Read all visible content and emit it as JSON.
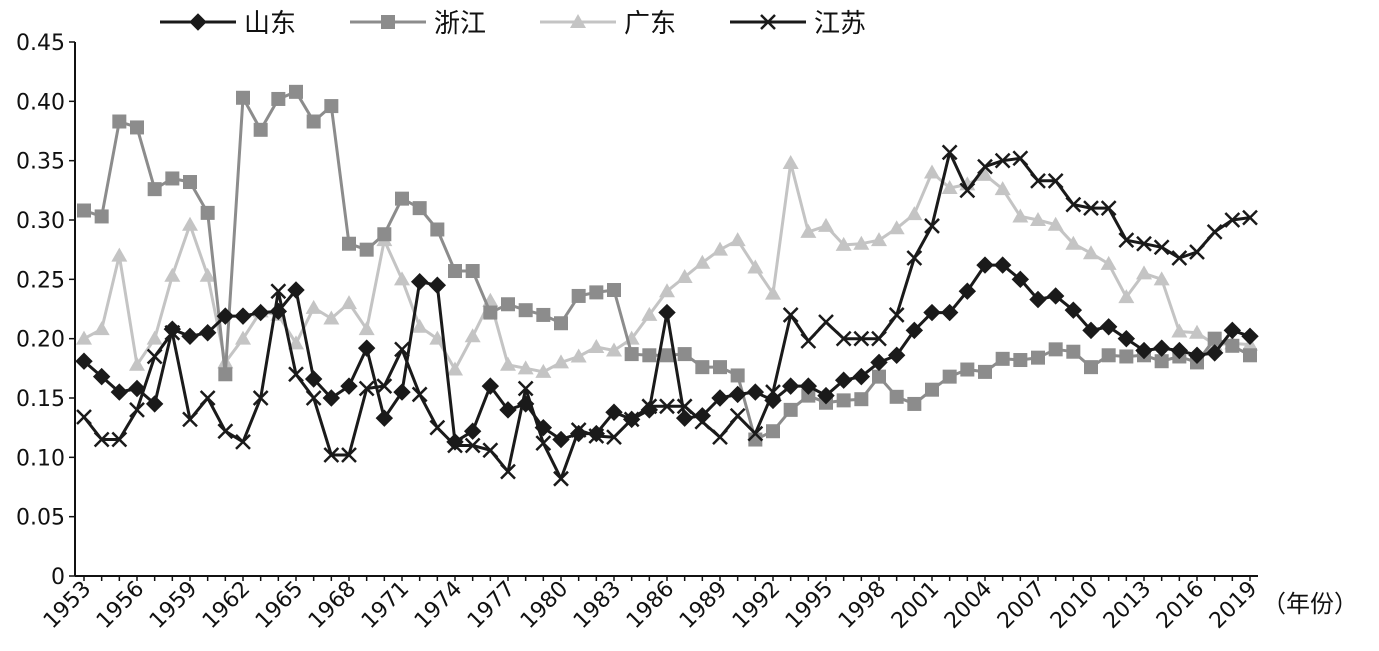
{
  "chart_data": {
    "type": "line",
    "x_unit_label": "（年份）",
    "x_tick_labels": [
      "1953",
      "1956",
      "1959",
      "1962",
      "1965",
      "1968",
      "1971",
      "1974",
      "1977",
      "1980",
      "1983",
      "1986",
      "1989",
      "1992",
      "1995",
      "1998",
      "2001",
      "2004",
      "2007",
      "2010",
      "2013",
      "2016",
      "2019"
    ],
    "y_tick_labels": [
      "0",
      "0.05",
      "0.10",
      "0.15",
      "0.20",
      "0.25",
      "0.30",
      "0.35",
      "0.40",
      "0.45"
    ],
    "ylim": [
      0,
      0.45
    ],
    "xlim": [
      1953,
      2019
    ],
    "grid": false,
    "legend_position": "top",
    "series": [
      {
        "name": "山东",
        "marker": "diamond",
        "color": "#1a1a1a",
        "x": [
          1953,
          1954,
          1955,
          1956,
          1957,
          1958,
          1959,
          1960,
          1961,
          1962,
          1963,
          1964,
          1965,
          1966,
          1967,
          1968,
          1969,
          1970,
          1971,
          1972,
          1973,
          1974,
          1975,
          1976,
          1977,
          1978,
          1979,
          1980,
          1981,
          1982,
          1983,
          1984,
          1985,
          1986,
          1987,
          1988,
          1989,
          1990,
          1991,
          1992,
          1993,
          1994,
          1995,
          1996,
          1997,
          1998,
          1999,
          2000,
          2001,
          2002,
          2003,
          2004,
          2005,
          2006,
          2007,
          2008,
          2009,
          2010,
          2011,
          2012,
          2013,
          2014,
          2015,
          2016,
          2017,
          2018,
          2019
        ],
        "values": [
          0.181,
          0.168,
          0.155,
          0.158,
          0.145,
          0.208,
          0.202,
          0.205,
          0.219,
          0.219,
          0.222,
          0.223,
          0.241,
          0.166,
          0.15,
          0.16,
          0.192,
          0.133,
          0.155,
          0.248,
          0.245,
          0.113,
          0.122,
          0.16,
          0.14,
          0.145,
          0.125,
          0.115,
          0.12,
          0.12,
          0.138,
          0.132,
          0.14,
          0.222,
          0.133,
          0.135,
          0.15,
          0.153,
          0.155,
          0.148,
          0.16,
          0.16,
          0.152,
          0.165,
          0.168,
          0.18,
          0.186,
          0.207,
          0.222,
          0.222,
          0.24,
          0.262,
          0.262,
          0.25,
          0.233,
          0.236,
          0.224,
          0.207,
          0.21,
          0.2,
          0.19,
          0.192,
          0.19,
          0.186,
          0.188,
          0.207,
          0.202
        ]
      },
      {
        "name": "浙江",
        "marker": "square",
        "color": "#8c8c8c",
        "x": [
          1953,
          1954,
          1955,
          1956,
          1957,
          1958,
          1959,
          1960,
          1961,
          1962,
          1963,
          1964,
          1965,
          1966,
          1967,
          1968,
          1969,
          1970,
          1971,
          1972,
          1973,
          1974,
          1975,
          1976,
          1977,
          1978,
          1979,
          1980,
          1981,
          1982,
          1983,
          1984,
          1985,
          1986,
          1987,
          1988,
          1989,
          1990,
          1991,
          1992,
          1993,
          1994,
          1995,
          1996,
          1997,
          1998,
          1999,
          2000,
          2001,
          2002,
          2003,
          2004,
          2005,
          2006,
          2007,
          2008,
          2009,
          2010,
          2011,
          2012,
          2013,
          2014,
          2015,
          2016,
          2017,
          2018,
          2019
        ],
        "values": [
          0.308,
          0.303,
          0.383,
          0.378,
          0.326,
          0.335,
          0.332,
          0.306,
          0.17,
          0.403,
          0.376,
          0.402,
          0.408,
          0.383,
          0.396,
          0.28,
          0.275,
          0.288,
          0.318,
          0.31,
          0.292,
          0.257,
          0.257,
          0.222,
          0.229,
          0.224,
          0.22,
          0.213,
          0.236,
          0.239,
          0.241,
          0.187,
          0.186,
          0.186,
          0.187,
          0.176,
          0.176,
          0.169,
          0.115,
          0.122,
          0.14,
          0.152,
          0.146,
          0.148,
          0.149,
          0.168,
          0.151,
          0.145,
          0.157,
          0.168,
          0.174,
          0.172,
          0.183,
          0.182,
          0.184,
          0.191,
          0.189,
          0.176,
          0.186,
          0.185,
          0.186,
          0.181,
          0.185,
          0.18,
          0.2,
          0.194,
          0.186
        ]
      },
      {
        "name": "广东",
        "marker": "triangle",
        "color": "#c4c4c4",
        "x": [
          1953,
          1954,
          1955,
          1956,
          1957,
          1958,
          1959,
          1960,
          1961,
          1962,
          1963,
          1964,
          1965,
          1966,
          1967,
          1968,
          1969,
          1970,
          1971,
          1972,
          1973,
          1974,
          1975,
          1976,
          1977,
          1978,
          1979,
          1980,
          1981,
          1982,
          1983,
          1984,
          1985,
          1986,
          1987,
          1988,
          1989,
          1990,
          1991,
          1992,
          1993,
          1994,
          1995,
          1996,
          1997,
          1998,
          1999,
          2000,
          2001,
          2002,
          2003,
          2004,
          2005,
          2006,
          2007,
          2008,
          2009,
          2010,
          2011,
          2012,
          2013,
          2014,
          2015,
          2016,
          2017,
          2018,
          2019
        ],
        "values": [
          0.2,
          0.208,
          0.27,
          0.178,
          0.2,
          0.253,
          0.296,
          0.253,
          0.18,
          0.2,
          0.223,
          0.22,
          0.196,
          0.226,
          0.217,
          0.23,
          0.208,
          0.283,
          0.25,
          0.21,
          0.2,
          0.174,
          0.202,
          0.232,
          0.178,
          0.175,
          0.172,
          0.18,
          0.185,
          0.193,
          0.19,
          0.2,
          0.22,
          0.24,
          0.252,
          0.264,
          0.275,
          0.283,
          0.26,
          0.238,
          0.348,
          0.29,
          0.295,
          0.279,
          0.28,
          0.283,
          0.293,
          0.305,
          0.34,
          0.327,
          0.33,
          0.338,
          0.326,
          0.303,
          0.3,
          0.296,
          0.28,
          0.272,
          0.263,
          0.235,
          0.255,
          0.25,
          0.206,
          0.205,
          0.195,
          0.196,
          0.195
        ]
      },
      {
        "name": "江苏",
        "marker": "x",
        "color": "#1a1a1a",
        "x": [
          1953,
          1954,
          1955,
          1956,
          1957,
          1958,
          1959,
          1960,
          1961,
          1962,
          1963,
          1964,
          1965,
          1966,
          1967,
          1968,
          1969,
          1970,
          1971,
          1972,
          1973,
          1974,
          1975,
          1976,
          1977,
          1978,
          1979,
          1980,
          1981,
          1982,
          1983,
          1984,
          1985,
          1986,
          1987,
          1988,
          1989,
          1990,
          1991,
          1992,
          1993,
          1994,
          1995,
          1996,
          1997,
          1998,
          1999,
          2000,
          2001,
          2002,
          2003,
          2004,
          2005,
          2006,
          2007,
          2008,
          2009,
          2010,
          2011,
          2012,
          2013,
          2014,
          2015,
          2016,
          2017,
          2018,
          2019
        ],
        "values": [
          0.134,
          0.115,
          0.115,
          0.14,
          0.185,
          0.205,
          0.132,
          0.15,
          0.122,
          0.113,
          0.15,
          0.24,
          0.17,
          0.15,
          0.102,
          0.102,
          0.158,
          0.16,
          0.191,
          0.153,
          0.125,
          0.11,
          0.11,
          0.106,
          0.088,
          0.158,
          0.112,
          0.082,
          0.123,
          0.118,
          0.117,
          0.132,
          0.143,
          0.143,
          0.143,
          0.13,
          0.117,
          0.135,
          0.12,
          0.155,
          0.22,
          0.198,
          0.214,
          0.2,
          0.2,
          0.2,
          0.22,
          0.268,
          0.295,
          0.357,
          0.325,
          0.345,
          0.35,
          0.352,
          0.333,
          0.333,
          0.313,
          0.31,
          0.31,
          0.283,
          0.28,
          0.277,
          0.268,
          0.273,
          0.29,
          0.3,
          0.302
        ]
      }
    ]
  }
}
